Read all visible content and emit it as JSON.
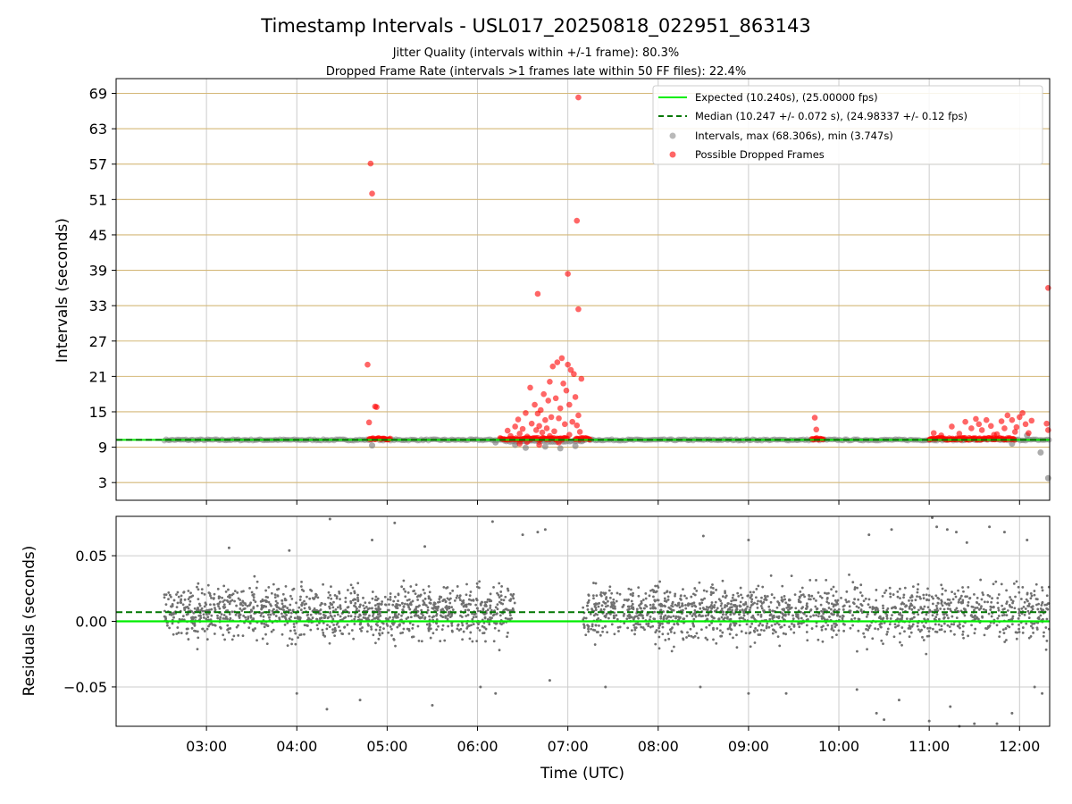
{
  "chart_data": [
    {
      "type": "scatter",
      "title": "Timestamp Intervals - USL017_20250818_022951_863143",
      "subtitle_lines": [
        "Jitter Quality (intervals within +/-1 frame): 80.3%",
        "Dropped Frame Rate (intervals >1 frames late within 50 FF files): 22.4%"
      ],
      "ylabel": "Intervals (seconds)",
      "xlim": [
        "02:00",
        "12:20"
      ],
      "ylim": [
        0,
        71.5
      ],
      "yticks": [
        3,
        9,
        15,
        21,
        27,
        33,
        39,
        45,
        51,
        57,
        63,
        69
      ],
      "ytick_labels": [
        "3",
        "9",
        "15",
        "21",
        "27",
        "33",
        "39",
        "45",
        "51",
        "57",
        "63",
        "69"
      ],
      "x_grid": true,
      "y_grid": true,
      "colors": {
        "expected": "#00ee00",
        "median": "#007700",
        "intervals": "#808080",
        "dropped": "#ff0000",
        "hgrid": "#d4b878",
        "vgrid": "#cccccc"
      },
      "legend": {
        "placement": "top-right",
        "entries": [
          "Expected (10.240s), (25.00000 fps)",
          "Median (10.247 +/- 0.072 s), (24.98337 +/- 0.12 fps)",
          "Intervals, max (68.306s), min (3.747s)",
          "Possible Dropped Frames"
        ]
      },
      "expected_value": 10.24,
      "median_value": 10.247,
      "series": [
        {
          "name": "Intervals, max (68.306s), min (3.747s)",
          "segments": [
            {
              "start": "02:32",
              "end": "04:50",
              "y": 10.24
            },
            {
              "start": "04:55",
              "end": "06:18",
              "y": 10.24
            },
            {
              "start": "06:18",
              "end": "07:10",
              "y": 10.0
            },
            {
              "start": "07:10",
              "end": "12:20",
              "y": 10.24
            }
          ],
          "outliers": [
            {
              "x": "04:50",
              "y": 9.3
            },
            {
              "x": "06:12",
              "y": 9.8
            },
            {
              "x": "06:25",
              "y": 9.4
            },
            {
              "x": "06:32",
              "y": 8.9
            },
            {
              "x": "06:45",
              "y": 9.1
            },
            {
              "x": "06:55",
              "y": 8.8
            },
            {
              "x": "07:05",
              "y": 9.2
            },
            {
              "x": "12:14",
              "y": 8.1
            },
            {
              "x": "12:19",
              "y": 3.747
            },
            {
              "x": "12:05",
              "y": 11.0
            },
            {
              "x": "11:55",
              "y": 9.6
            }
          ]
        },
        {
          "name": "Possible Dropped Frames",
          "clusters": [
            {
              "start": "04:48",
              "end": "05:02",
              "y": 10.25
            },
            {
              "start": "06:15",
              "end": "07:00",
              "y": 10.25
            },
            {
              "start": "07:05",
              "end": "07:15",
              "y": 10.25
            },
            {
              "start": "09:42",
              "end": "09:50",
              "y": 10.25
            },
            {
              "start": "11:00",
              "end": "11:57",
              "y": 10.25
            }
          ],
          "points": [
            {
              "x": "04:47",
              "y": 23.0
            },
            {
              "x": "04:48",
              "y": 13.2
            },
            {
              "x": "04:49",
              "y": 57.1
            },
            {
              "x": "04:50",
              "y": 52.0
            },
            {
              "x": "04:52",
              "y": 15.9
            },
            {
              "x": "04:53",
              "y": 15.8
            },
            {
              "x": "06:20",
              "y": 11.8
            },
            {
              "x": "06:22",
              "y": 10.9
            },
            {
              "x": "06:25",
              "y": 12.5
            },
            {
              "x": "06:27",
              "y": 13.7
            },
            {
              "x": "06:28",
              "y": 11.3
            },
            {
              "x": "06:30",
              "y": 12.1
            },
            {
              "x": "06:32",
              "y": 14.8
            },
            {
              "x": "06:33",
              "y": 10.8
            },
            {
              "x": "06:35",
              "y": 19.1
            },
            {
              "x": "06:36",
              "y": 13.0
            },
            {
              "x": "06:38",
              "y": 16.2
            },
            {
              "x": "06:39",
              "y": 11.9
            },
            {
              "x": "06:40",
              "y": 14.7
            },
            {
              "x": "06:41",
              "y": 12.6
            },
            {
              "x": "06:42",
              "y": 15.3
            },
            {
              "x": "06:43",
              "y": 11.5
            },
            {
              "x": "06:44",
              "y": 18.0
            },
            {
              "x": "06:45",
              "y": 13.6
            },
            {
              "x": "06:46",
              "y": 12.2
            },
            {
              "x": "06:47",
              "y": 16.9
            },
            {
              "x": "06:48",
              "y": 20.1
            },
            {
              "x": "06:49",
              "y": 14.1
            },
            {
              "x": "06:50",
              "y": 22.7
            },
            {
              "x": "06:51",
              "y": 11.7
            },
            {
              "x": "06:52",
              "y": 17.3
            },
            {
              "x": "06:53",
              "y": 23.4
            },
            {
              "x": "06:54",
              "y": 13.9
            },
            {
              "x": "06:55",
              "y": 15.6
            },
            {
              "x": "06:56",
              "y": 24.1
            },
            {
              "x": "06:57",
              "y": 19.8
            },
            {
              "x": "06:58",
              "y": 12.9
            },
            {
              "x": "06:59",
              "y": 18.6
            },
            {
              "x": "07:00",
              "y": 23.0
            },
            {
              "x": "07:01",
              "y": 16.2
            },
            {
              "x": "07:02",
              "y": 22.1
            },
            {
              "x": "07:03",
              "y": 13.3
            },
            {
              "x": "07:04",
              "y": 21.4
            },
            {
              "x": "07:05",
              "y": 17.5
            },
            {
              "x": "07:06",
              "y": 12.7
            },
            {
              "x": "07:07",
              "y": 14.4
            },
            {
              "x": "07:08",
              "y": 11.6
            },
            {
              "x": "07:09",
              "y": 20.6
            },
            {
              "x": "06:28",
              "y": 9.6
            },
            {
              "x": "06:33",
              "y": 9.9
            },
            {
              "x": "06:41",
              "y": 9.4
            },
            {
              "x": "06:48",
              "y": 10.9
            },
            {
              "x": "06:54",
              "y": 9.8
            },
            {
              "x": "07:01",
              "y": 11.1
            },
            {
              "x": "06:40",
              "y": 35.0
            },
            {
              "x": "07:00",
              "y": 38.4
            },
            {
              "x": "07:06",
              "y": 47.4
            },
            {
              "x": "07:07",
              "y": 68.306
            },
            {
              "x": "07:07",
              "y": 32.4
            },
            {
              "x": "09:44",
              "y": 14.0
            },
            {
              "x": "09:45",
              "y": 12.0
            },
            {
              "x": "11:03",
              "y": 11.4
            },
            {
              "x": "11:08",
              "y": 11.0
            },
            {
              "x": "11:15",
              "y": 12.5
            },
            {
              "x": "11:20",
              "y": 11.3
            },
            {
              "x": "11:24",
              "y": 13.3
            },
            {
              "x": "11:28",
              "y": 12.2
            },
            {
              "x": "11:31",
              "y": 13.8
            },
            {
              "x": "11:35",
              "y": 11.9
            },
            {
              "x": "11:38",
              "y": 13.6
            },
            {
              "x": "11:41",
              "y": 12.6
            },
            {
              "x": "11:45",
              "y": 11.2
            },
            {
              "x": "11:48",
              "y": 13.4
            },
            {
              "x": "11:50",
              "y": 12.2
            },
            {
              "x": "11:52",
              "y": 14.4
            },
            {
              "x": "11:55",
              "y": 13.6
            },
            {
              "x": "11:58",
              "y": 12.4
            },
            {
              "x": "12:00",
              "y": 14.1
            },
            {
              "x": "12:02",
              "y": 14.8
            },
            {
              "x": "12:04",
              "y": 12.9
            },
            {
              "x": "12:06",
              "y": 11.4
            },
            {
              "x": "12:08",
              "y": 13.5
            },
            {
              "x": "11:43",
              "y": 11.1
            },
            {
              "x": "11:33",
              "y": 12.9
            },
            {
              "x": "11:57",
              "y": 11.6
            },
            {
              "x": "12:18",
              "y": 13.0
            },
            {
              "x": "12:19",
              "y": 11.9
            },
            {
              "x": "12:19",
              "y": 36.0
            }
          ]
        }
      ]
    },
    {
      "type": "scatter",
      "ylabel": "Residuals (seconds)",
      "xlabel": "Time (UTC)",
      "xlim": [
        "02:00",
        "12:20"
      ],
      "ylim": [
        -0.08,
        0.08
      ],
      "yticks": [
        -0.05,
        0.0,
        0.05
      ],
      "ytick_labels": [
        "−0.05",
        "0.00",
        "0.05"
      ],
      "xticks": [
        "03:00",
        "04:00",
        "05:00",
        "06:00",
        "07:00",
        "08:00",
        "09:00",
        "10:00",
        "11:00",
        "12:00"
      ],
      "grid": true,
      "expected_residual": 0.0,
      "median_residual": 0.007,
      "colors": {
        "points": "#707070",
        "expected": "#00ee00",
        "median": "#007700",
        "grid": "#cccccc"
      },
      "series": [
        {
          "name": "Residuals",
          "segments": [
            {
              "start": "02:32",
              "end": "06:25",
              "center": 0.007,
              "spread": 0.03,
              "density": 320
            },
            {
              "start": "07:10",
              "end": "10:00",
              "center": 0.007,
              "spread": 0.03,
              "density": 320
            },
            {
              "start": "10:00",
              "end": "12:20",
              "center": 0.007,
              "spread": 0.034,
              "density": 250
            }
          ],
          "outliers": [
            {
              "x": "03:15",
              "y": 0.056
            },
            {
              "x": "03:55",
              "y": 0.054
            },
            {
              "x": "04:00",
              "y": -0.055
            },
            {
              "x": "04:20",
              "y": -0.067
            },
            {
              "x": "04:22",
              "y": 0.078
            },
            {
              "x": "04:42",
              "y": -0.06
            },
            {
              "x": "04:50",
              "y": 0.062
            },
            {
              "x": "05:05",
              "y": 0.075
            },
            {
              "x": "05:25",
              "y": 0.057
            },
            {
              "x": "05:30",
              "y": -0.064
            },
            {
              "x": "06:02",
              "y": -0.05
            },
            {
              "x": "06:10",
              "y": 0.076
            },
            {
              "x": "06:12",
              "y": -0.055
            },
            {
              "x": "06:30",
              "y": 0.066
            },
            {
              "x": "06:40",
              "y": 0.068
            },
            {
              "x": "06:45",
              "y": 0.07
            },
            {
              "x": "06:48",
              "y": -0.045
            },
            {
              "x": "07:25",
              "y": -0.05
            },
            {
              "x": "08:30",
              "y": 0.065
            },
            {
              "x": "08:28",
              "y": -0.05
            },
            {
              "x": "09:00",
              "y": 0.062
            },
            {
              "x": "09:00",
              "y": -0.055
            },
            {
              "x": "09:25",
              "y": -0.055
            },
            {
              "x": "10:12",
              "y": -0.052
            },
            {
              "x": "10:20",
              "y": 0.066
            },
            {
              "x": "10:25",
              "y": -0.07
            },
            {
              "x": "10:30",
              "y": -0.075
            },
            {
              "x": "10:35",
              "y": 0.07
            },
            {
              "x": "10:40",
              "y": -0.06
            },
            {
              "x": "11:00",
              "y": -0.076
            },
            {
              "x": "11:02",
              "y": 0.079
            },
            {
              "x": "11:05",
              "y": 0.072
            },
            {
              "x": "11:12",
              "y": 0.07
            },
            {
              "x": "11:14",
              "y": -0.065
            },
            {
              "x": "11:18",
              "y": 0.068
            },
            {
              "x": "11:20",
              "y": -0.08
            },
            {
              "x": "11:25",
              "y": 0.06
            },
            {
              "x": "11:30",
              "y": -0.078
            },
            {
              "x": "11:40",
              "y": 0.072
            },
            {
              "x": "11:45",
              "y": -0.078
            },
            {
              "x": "11:50",
              "y": 0.068
            },
            {
              "x": "11:55",
              "y": -0.07
            },
            {
              "x": "12:05",
              "y": 0.062
            },
            {
              "x": "12:10",
              "y": -0.05
            },
            {
              "x": "12:15",
              "y": -0.055
            }
          ]
        }
      ]
    }
  ]
}
